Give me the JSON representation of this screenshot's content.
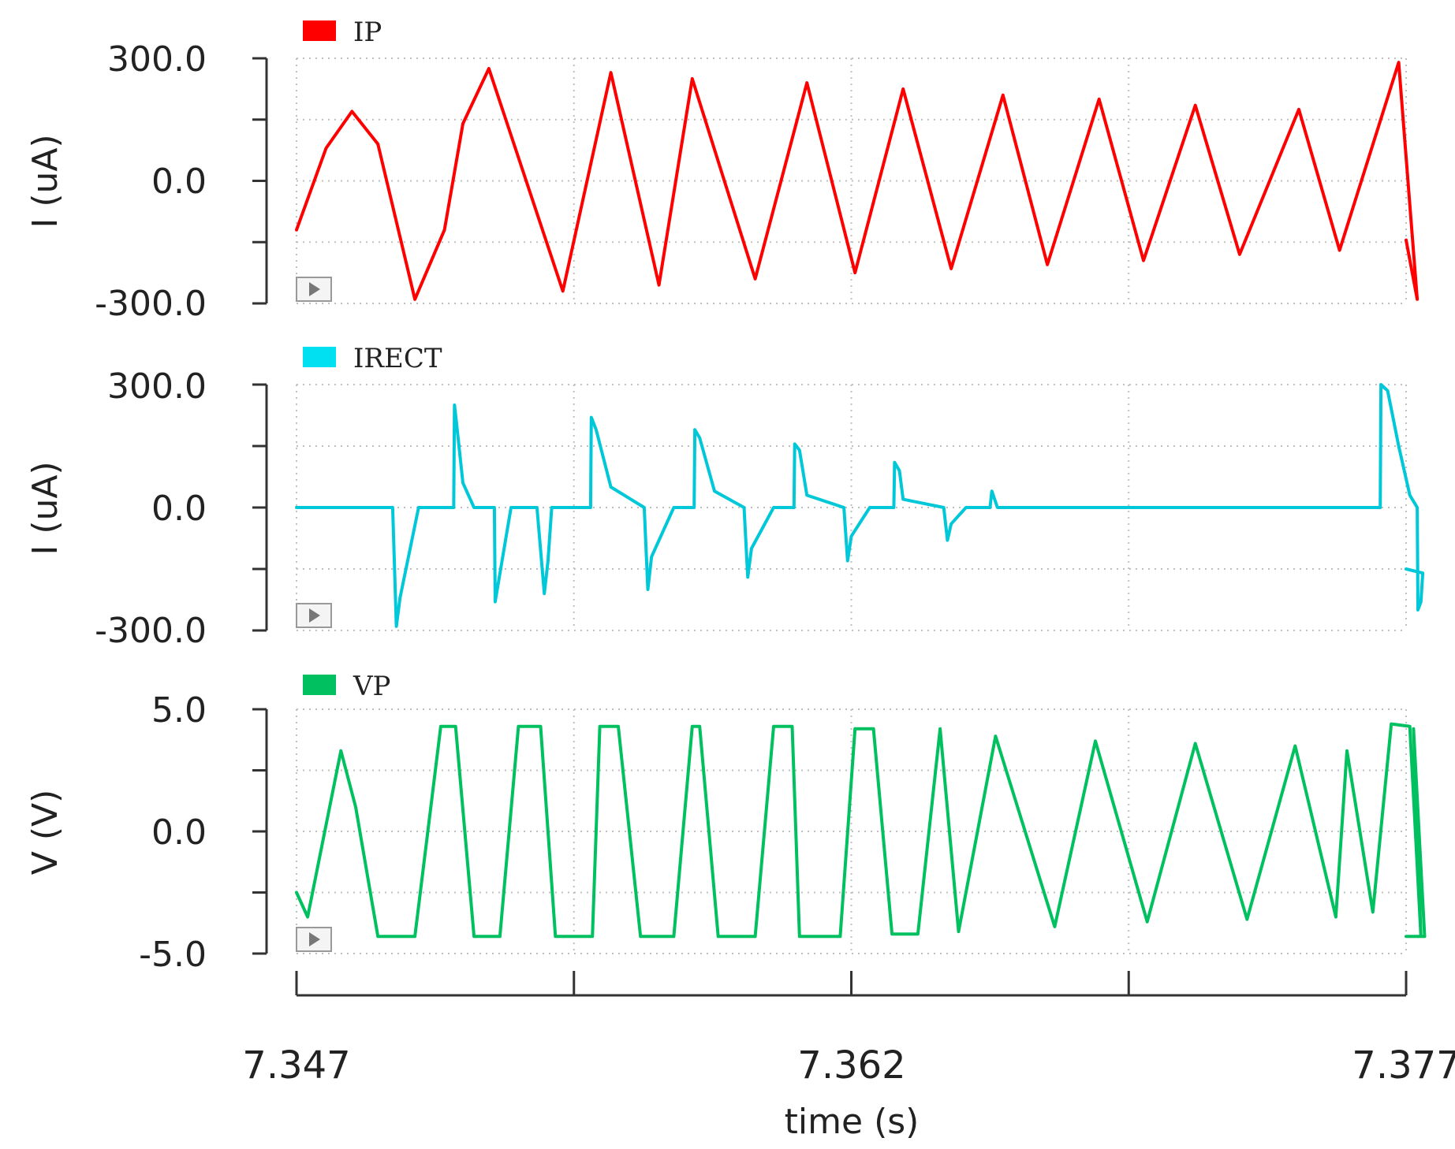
{
  "chart_data": [
    {
      "type": "line",
      "series": [
        {
          "name": "IP",
          "color": "#ff0000",
          "x": [
            7.347,
            7.3478,
            7.3485,
            7.3492,
            7.3502,
            7.351,
            7.3515,
            7.3522,
            7.3542,
            7.3555,
            7.3568,
            7.3577,
            7.3594,
            7.3608,
            7.3621,
            7.3634,
            7.3647,
            7.3661,
            7.3673,
            7.3687,
            7.3699,
            7.3713,
            7.3725,
            7.3741,
            7.3752,
            7.3768,
            7.3773,
            7.377
          ],
          "y": [
            -120,
            80,
            170,
            90,
            -290,
            -120,
            140,
            275,
            -270,
            265,
            -255,
            250,
            -240,
            240,
            -225,
            225,
            -215,
            210,
            -205,
            200,
            -195,
            185,
            -180,
            175,
            -170,
            290,
            -290,
            -145
          ]
        }
      ],
      "xlim": [
        7.347,
        7.377
      ],
      "ylim": [
        -300,
        300
      ],
      "yticks": [
        "300.0",
        "0.0",
        "-300.0"
      ],
      "ylabel": "I (uA)",
      "grid": true
    },
    {
      "type": "line",
      "series": [
        {
          "name": "IRECT",
          "color": "#00c8d8",
          "x": [
            7.347,
            7.3496,
            7.3497,
            7.3498,
            7.3503,
            7.3506,
            7.3507,
            7.35125,
            7.35127,
            7.35131,
            7.3515,
            7.3518,
            7.3521,
            7.3523,
            7.35235,
            7.35237,
            7.3528,
            7.3535,
            7.3537,
            7.3538,
            7.3539,
            7.3545,
            7.3548,
            7.35495,
            7.35497,
            7.3551,
            7.3555,
            7.3564,
            7.3565,
            7.3566,
            7.3572,
            7.3575,
            7.3577,
            7.35775,
            7.35777,
            7.3579,
            7.3583,
            7.3591,
            7.3592,
            7.3593,
            7.3599,
            7.3602,
            7.3604,
            7.36045,
            7.36047,
            7.3606,
            7.3608,
            7.3618,
            7.3619,
            7.362,
            7.3625,
            7.3628,
            7.3631,
            7.36315,
            7.36317,
            7.3633,
            7.3634,
            7.3645,
            7.3646,
            7.3647,
            7.3651,
            7.3653,
            7.3656,
            7.36575,
            7.3658,
            7.36595,
            7.3664,
            7.3675,
            7.3702,
            7.3727,
            7.3752,
            7.3763,
            7.37632,
            7.3765,
            7.3768,
            7.3771,
            7.3773,
            7.37732,
            7.3774,
            7.37745,
            7.377
          ],
          "y": [
            0,
            0,
            -290,
            -220,
            0,
            0,
            0,
            0,
            250,
            220,
            60,
            0,
            0,
            0,
            0,
            -230,
            0,
            0,
            -210,
            -130,
            0,
            0,
            0,
            0,
            220,
            190,
            50,
            0,
            -200,
            -120,
            0,
            0,
            0,
            0,
            190,
            170,
            40,
            0,
            -170,
            -100,
            0,
            0,
            0,
            0,
            155,
            140,
            30,
            0,
            -130,
            -70,
            0,
            0,
            0,
            0,
            110,
            90,
            20,
            0,
            -80,
            -40,
            0,
            0,
            0,
            0,
            40,
            0,
            0,
            0,
            0,
            0,
            0,
            0,
            300,
            285,
            150,
            30,
            0,
            -250,
            -230,
            -160,
            -150
          ]
        }
      ],
      "xlim": [
        7.347,
        7.377
      ],
      "ylim": [
        -300,
        300
      ],
      "yticks": [
        "300.0",
        "0.0",
        "-300.0"
      ],
      "ylabel": "I (uA)",
      "grid": true
    },
    {
      "type": "line",
      "series": [
        {
          "name": "VP",
          "color": "#00c060",
          "x": [
            7.347,
            7.3473,
            7.3482,
            7.3486,
            7.3492,
            7.3496,
            7.3502,
            7.3509,
            7.3513,
            7.3518,
            7.3523,
            7.3525,
            7.353,
            7.3536,
            7.354,
            7.3545,
            7.355,
            7.3552,
            7.3557,
            7.3563,
            7.3567,
            7.3572,
            7.3577,
            7.3579,
            7.3584,
            7.359,
            7.3594,
            7.3599,
            7.3604,
            7.3606,
            7.3611,
            7.3617,
            7.3621,
            7.3626,
            7.3631,
            7.3633,
            7.3638,
            7.3644,
            7.3649,
            7.3659,
            7.3675,
            7.3686,
            7.37,
            7.3713,
            7.3727,
            7.374,
            7.3751,
            7.3754,
            7.3761,
            7.3766,
            7.3771,
            7.3774,
            7.3772,
            7.3775,
            7.377
          ],
          "y": [
            -2.5,
            -3.5,
            3.3,
            1.0,
            -4.3,
            -4.3,
            -4.3,
            4.3,
            4.3,
            -4.3,
            -4.3,
            -4.3,
            4.3,
            4.3,
            -4.3,
            -4.3,
            -4.3,
            4.3,
            4.3,
            -4.3,
            -4.3,
            -4.3,
            4.3,
            4.3,
            -4.3,
            -4.3,
            -4.3,
            4.3,
            4.3,
            -4.3,
            -4.3,
            -4.3,
            4.2,
            4.2,
            -4.2,
            -4.2,
            -4.2,
            4.2,
            -4.1,
            3.9,
            -3.9,
            3.7,
            -3.7,
            3.6,
            -3.6,
            3.5,
            -3.5,
            3.3,
            -3.3,
            4.4,
            4.3,
            -4.3,
            4.2,
            -4.3,
            -4.3
          ]
        }
      ],
      "xlim": [
        7.347,
        7.377
      ],
      "ylim": [
        -5,
        5
      ],
      "yticks": [
        "5.0",
        "0.0",
        "-5.0"
      ],
      "ylabel": "V (V)",
      "grid": true
    }
  ],
  "x_axis": {
    "label": "time (s)",
    "ticks": [
      "7.347",
      "7.362",
      "7.377"
    ]
  }
}
